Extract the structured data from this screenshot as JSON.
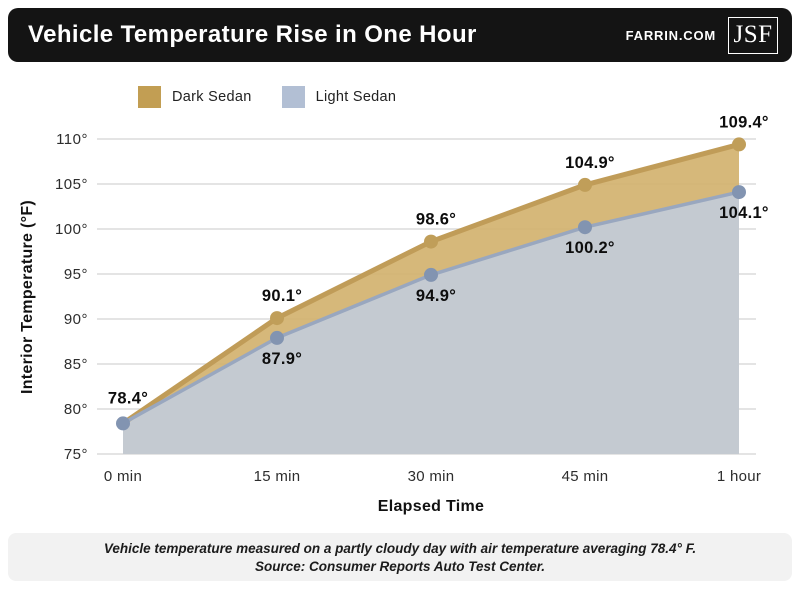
{
  "header": {
    "title": "Vehicle Temperature Rise in One Hour",
    "site": "FARRIN.COM",
    "logo": "JSF"
  },
  "chart_data": {
    "type": "area",
    "title": "Vehicle Temperature Rise in One Hour",
    "xlabel": "Elapsed Time",
    "ylabel": "Interior Temperature (°F)",
    "x_categories": [
      "0 min",
      "15 min",
      "30 min",
      "45 min",
      "1 hour"
    ],
    "ylim": [
      75,
      110
    ],
    "grid": true,
    "legend_position": "top",
    "y_ticks": [
      {
        "label": "75°",
        "value": 75
      },
      {
        "label": "80°",
        "value": 80
      },
      {
        "label": "85°",
        "value": 85
      },
      {
        "label": "90°",
        "value": 90
      },
      {
        "label": "95°",
        "value": 95
      },
      {
        "label": "100°",
        "value": 100
      },
      {
        "label": "105°",
        "value": 105
      },
      {
        "label": "110°",
        "value": 110
      }
    ],
    "series": [
      {
        "name": "Dark Sedan",
        "values": [
          78.4,
          90.1,
          98.6,
          104.9,
          109.4
        ],
        "point_labels": [
          "78.4°",
          "90.1°",
          "98.6°",
          "104.9°",
          "109.4°"
        ],
        "label_side": "above",
        "colors": {
          "fill": "#d2b06c",
          "line": "#c09c58",
          "dot": "#c09e59",
          "swatch": "#c29e53"
        }
      },
      {
        "name": "Light Sedan",
        "values": [
          78.4,
          87.9,
          94.9,
          100.2,
          104.1
        ],
        "point_labels": [
          null,
          "87.9°",
          "94.9°",
          "100.2°",
          "104.1°"
        ],
        "label_side": "below",
        "colors": {
          "fill": "#c2ccda",
          "line": "#99a7bf",
          "dot": "#8294b1",
          "swatch": "#b2bfd4"
        }
      }
    ],
    "grid_color": "#dcdcdc",
    "tick_color": "#2d2d2d",
    "data_label_color": "#0d0d0d"
  },
  "footer": {
    "line1": "Vehicle temperature measured on a partly cloudy day with air temperature averaging 78.4° F.",
    "line2": "Source: Consumer Reports Auto Test Center."
  }
}
